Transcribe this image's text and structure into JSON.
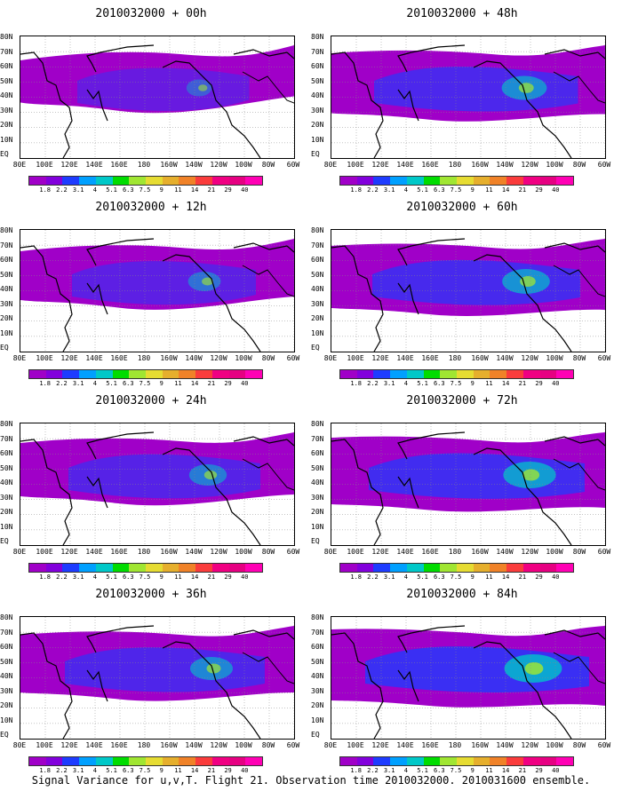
{
  "panels": [
    {
      "title": "2010032000 + 00h",
      "intensity": 0.15
    },
    {
      "title": "2010032000 + 48h",
      "intensity": 0.55
    },
    {
      "title": "2010032000 + 12h",
      "intensity": 0.3
    },
    {
      "title": "2010032000 + 60h",
      "intensity": 0.6
    },
    {
      "title": "2010032000 + 24h",
      "intensity": 0.4
    },
    {
      "title": "2010032000 + 72h",
      "intensity": 0.7
    },
    {
      "title": "2010032000 + 36h",
      "intensity": 0.5
    },
    {
      "title": "2010032000 + 84h",
      "intensity": 0.8
    }
  ],
  "lat_labels": [
    "80N",
    "70N",
    "60N",
    "50N",
    "40N",
    "30N",
    "20N",
    "10N",
    "EQ"
  ],
  "lon_labels": [
    "80E",
    "100E",
    "120E",
    "140E",
    "160E",
    "180",
    "160W",
    "140W",
    "120W",
    "100W",
    "80W",
    "60W"
  ],
  "colorbar": {
    "labels": [
      "1.8",
      "2.2",
      "3.1",
      "4",
      "5.1",
      "6.3",
      "7.5",
      "9",
      "11",
      "14",
      "21",
      "29",
      "40"
    ],
    "colors": [
      "#a000c8",
      "#8200dc",
      "#1e3cff",
      "#00a0ff",
      "#00c8c8",
      "#00dc00",
      "#a0e632",
      "#e6dc32",
      "#e6af2d",
      "#f08228",
      "#fa3c3c",
      "#f00082",
      "#e60082",
      "#ff00b4"
    ]
  },
  "footer": "Signal Variance for u,v,T. Flight 21. Observation time 2010032000. 2010031600 ensemble."
}
